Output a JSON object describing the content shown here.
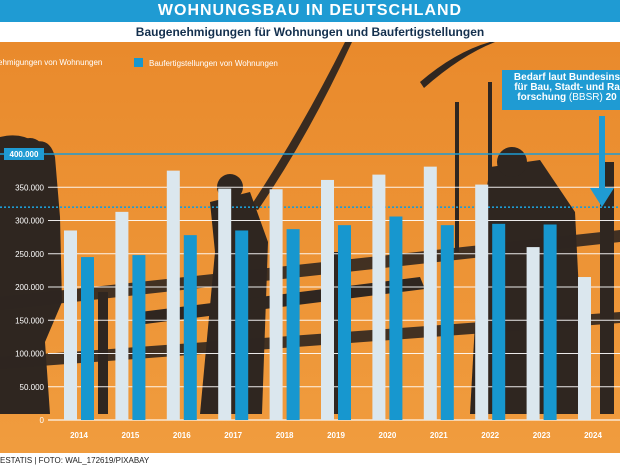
{
  "title": "WOHNUNGSBAU IN DEUTSCHLAND",
  "subtitle": "Baugenehmigungen für Wohnungen und Baufertigstellungen",
  "source": "ESTATIS | FOTO: WAL_172619/PIXABAY",
  "annotation": {
    "line1": "Bedarf laut Bundesins",
    "line2": "für Bau, Stadt- und Ra",
    "line3_a": "forschung",
    "line3_b": "(BBSR)",
    "line3_c": "20"
  },
  "colors": {
    "approvals": "#dbe7ee",
    "completions": "#1797cf",
    "accent": "#1f9bd3",
    "sky_top": "#ea8d2e",
    "sky_bottom": "#ef9a3c",
    "silhouette": "#2e2620"
  },
  "chart_data": {
    "type": "bar",
    "title": "Baugenehmigungen für Wohnungen und Baufertigstellungen",
    "categories": [
      "2014",
      "2015",
      "2016",
      "2017",
      "2018",
      "2019",
      "2020",
      "2021",
      "2022",
      "2023",
      "2024"
    ],
    "series": [
      {
        "name": "ehmigungen von Wohnungen",
        "values": [
          285000,
          313000,
          375000,
          348000,
          347000,
          361000,
          369000,
          381000,
          354000,
          260000,
          215000
        ]
      },
      {
        "name": "Baufertigstellungen von Wohnungen",
        "values": [
          245000,
          248000,
          278000,
          285000,
          287000,
          293000,
          306000,
          293000,
          295000,
          294000,
          null
        ]
      }
    ],
    "reference_lines": [
      {
        "value": 400000,
        "label": "400.000"
      },
      {
        "value": 320000,
        "label": ""
      }
    ],
    "yticks": [
      "0",
      "50.000",
      "100.000",
      "150.000",
      "200.000",
      "250.000",
      "300.000",
      "350.000",
      "400.000"
    ],
    "ylim": [
      0,
      400000
    ],
    "grid": true,
    "legend": "top"
  }
}
